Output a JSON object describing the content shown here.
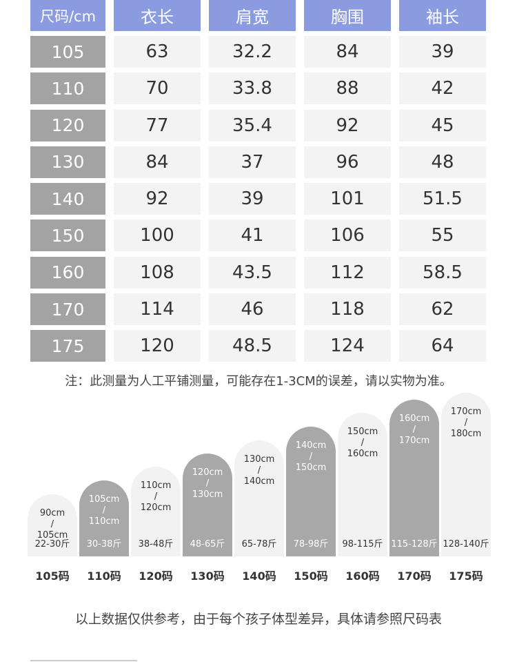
{
  "size_table": {
    "headers": [
      "尺码/cm",
      "衣长",
      "肩宽",
      "胸围",
      "袖长"
    ],
    "rows": [
      [
        "105",
        "63",
        "32.2",
        "84",
        "39"
      ],
      [
        "110",
        "70",
        "33.8",
        "88",
        "42"
      ],
      [
        "120",
        "77",
        "35.4",
        "92",
        "45"
      ],
      [
        "130",
        "84",
        "37",
        "96",
        "48"
      ],
      [
        "140",
        "92",
        "39",
        "101",
        "51.5"
      ],
      [
        "150",
        "100",
        "41",
        "106",
        "55"
      ],
      [
        "160",
        "108",
        "43.5",
        "112",
        "58.5"
      ],
      [
        "170",
        "114",
        "46",
        "118",
        "62"
      ],
      [
        "175",
        "120",
        "48.5",
        "124",
        "64"
      ]
    ]
  },
  "note": "注：此测量为人工平铺测量，可能存在1-3CM的误差，请以实物为准。",
  "height_chart": [
    {
      "height": "90cm\n/\n105cm",
      "weight": "22-30斤",
      "size": "105码",
      "tone": "light"
    },
    {
      "height": "105cm\n/\n110cm",
      "weight": "30-38斤",
      "size": "110码",
      "tone": "dark"
    },
    {
      "height": "110cm\n/\n120cm",
      "weight": "38-48斤",
      "size": "120码",
      "tone": "light"
    },
    {
      "height": "120cm\n/\n130cm",
      "weight": "48-65斤",
      "size": "130码",
      "tone": "dark"
    },
    {
      "height": "130cm\n/\n140cm",
      "weight": "65-78斤",
      "size": "140码",
      "tone": "light"
    },
    {
      "height": "140cm\n/\n150cm",
      "weight": "78-98斤",
      "size": "150码",
      "tone": "dark"
    },
    {
      "height": "150cm\n/\n160cm",
      "weight": "98-115斤",
      "size": "160码",
      "tone": "light"
    },
    {
      "height": "160cm\n/\n170cm",
      "weight": "115-128斤",
      "size": "170码",
      "tone": "dark"
    },
    {
      "height": "170cm\n/\n180cm",
      "weight": "128-140斤",
      "size": "175码",
      "tone": "light"
    }
  ],
  "footer": "以上数据仅供参考，由于每个孩子体型差异，具体请参照尺码表"
}
